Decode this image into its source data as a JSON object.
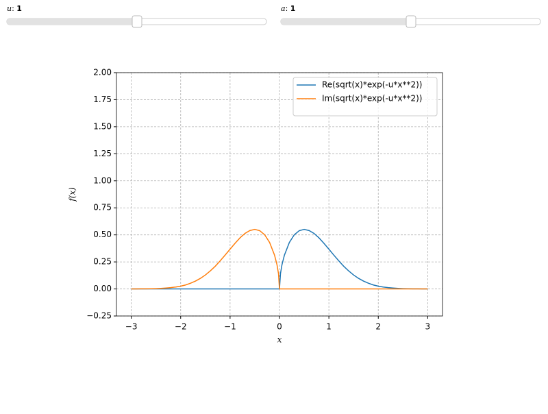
{
  "sliders": [
    {
      "name": "u",
      "value": "1"
    },
    {
      "name": "a",
      "value": "1"
    }
  ],
  "chart_data": {
    "type": "line",
    "xlabel": "x",
    "ylabel": "f(x)",
    "x": [
      -3,
      -2.9,
      -2.8,
      -2.7,
      -2.6,
      -2.5,
      -2.4,
      -2.3,
      -2.2,
      -2.1,
      -2,
      -1.9,
      -1.8,
      -1.7,
      -1.6,
      -1.5,
      -1.4,
      -1.3,
      -1.2,
      -1.1,
      -1,
      -0.9,
      -0.8,
      -0.7,
      -0.6,
      -0.5,
      -0.4,
      -0.3,
      -0.2,
      -0.1,
      -0.05,
      -0.02,
      0,
      0.02,
      0.05,
      0.1,
      0.2,
      0.3,
      0.4,
      0.5,
      0.6,
      0.7,
      0.8,
      0.9,
      1,
      1.1,
      1.2,
      1.3,
      1.4,
      1.5,
      1.6,
      1.7,
      1.8,
      1.9,
      2,
      2.1,
      2.2,
      2.3,
      2.4,
      2.5,
      2.6,
      2.7,
      2.8,
      2.9,
      3
    ],
    "series": [
      {
        "name": "Re(sqrt(x)*exp(-u*x**2))",
        "color": "#1f77b4",
        "values": [
          0,
          0,
          0,
          0,
          0,
          0,
          0,
          0,
          0,
          0,
          0,
          0,
          0,
          0,
          0,
          0,
          0,
          0,
          0,
          0,
          0,
          0,
          0,
          0,
          0,
          0,
          0,
          0,
          0,
          0,
          0,
          0,
          0,
          0.141,
          0.223,
          0.313,
          0.43,
          0.501,
          0.539,
          0.551,
          0.54,
          0.513,
          0.472,
          0.422,
          0.368,
          0.313,
          0.26,
          0.21,
          0.167,
          0.129,
          0.098,
          0.073,
          0.053,
          0.037,
          0.026,
          0.018,
          0.012,
          0.008,
          0.005,
          0.003,
          0.002,
          0.001,
          0.001,
          0,
          0
        ]
      },
      {
        "name": "Im(sqrt(x)*exp(-u*x**2))",
        "color": "#ff7f0e",
        "values": [
          0,
          0,
          0.001,
          0.001,
          0.002,
          0.003,
          0.005,
          0.008,
          0.012,
          0.018,
          0.026,
          0.037,
          0.053,
          0.073,
          0.098,
          0.129,
          0.167,
          0.21,
          0.26,
          0.313,
          0.368,
          0.422,
          0.472,
          0.513,
          0.54,
          0.551,
          0.539,
          0.501,
          0.43,
          0.313,
          0.223,
          0.141,
          0,
          0,
          0,
          0,
          0,
          0,
          0,
          0,
          0,
          0,
          0,
          0,
          0,
          0,
          0,
          0,
          0,
          0,
          0,
          0,
          0,
          0,
          0,
          0,
          0,
          0,
          0,
          0,
          0,
          0,
          0,
          0,
          0
        ]
      }
    ],
    "xlim": [
      -3.3,
      3.3
    ],
    "ylim": [
      -0.25,
      2
    ],
    "xticks": [
      {
        "value": -3,
        "label": "−3"
      },
      {
        "value": -2,
        "label": "−2"
      },
      {
        "value": -1,
        "label": "−1"
      },
      0,
      1,
      2,
      3
    ],
    "yticks": [
      {
        "value": -0.25,
        "label": "−0.25"
      },
      {
        "value": 0,
        "label": "0.00"
      },
      {
        "value": 0.25,
        "label": "0.25"
      },
      {
        "value": 0.5,
        "label": "0.50"
      },
      {
        "value": 0.75,
        "label": "0.75"
      },
      {
        "value": 1,
        "label": "1.00"
      },
      {
        "value": 1.25,
        "label": "1.25"
      },
      {
        "value": 1.5,
        "label": "1.50"
      },
      {
        "value": 1.75,
        "label": "1.75"
      },
      {
        "value": 2,
        "label": "2.00"
      }
    ],
    "grid": true,
    "legend": "upper right"
  }
}
